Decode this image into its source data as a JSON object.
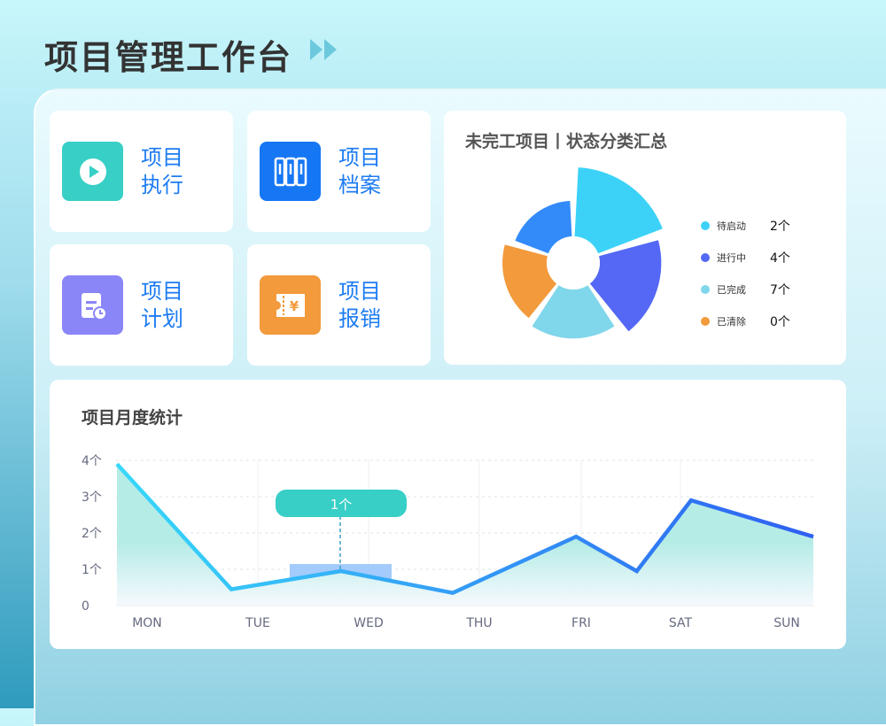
{
  "header": {
    "title": "项目管理工作台"
  },
  "quick_links": [
    {
      "line1": "项目",
      "line2": "执行",
      "icon": "play-icon",
      "color": "#37cfc6"
    },
    {
      "line1": "项目",
      "line2": "档案",
      "icon": "archive-icon",
      "color": "#1677f5"
    },
    {
      "line1": "项目",
      "line2": "计划",
      "icon": "plan-clock-icon",
      "color": "#8b86f7"
    },
    {
      "line1": "项目",
      "line2": "报销",
      "icon": "yuan-ticket-icon",
      "color": "#f29a3c"
    }
  ],
  "status_summary": {
    "title": "未完工项目丨状态分类汇总",
    "legend": [
      {
        "name": "待启动",
        "value": "2个",
        "color": "#3cd2f8"
      },
      {
        "name": "进行中",
        "value": "4个",
        "color": "#5468f5"
      },
      {
        "name": "已完成",
        "value": "7个",
        "color": "#80d6ea"
      },
      {
        "name": "已清除",
        "value": "0个",
        "color": "#f29a3c"
      }
    ],
    "slice_colors": [
      "#3cd2f8",
      "#5468f5",
      "#80d6ea",
      "#f29a3c",
      "#338bfa"
    ],
    "slice_relative_radius": [
      1.0,
      0.92,
      0.79,
      0.74,
      0.65
    ]
  },
  "chart_data": {
    "type": "area",
    "title": "项目月度统计",
    "categories": [
      "MON",
      "TUE",
      "WED",
      "THU",
      "FRI",
      "SAT",
      "SUN"
    ],
    "y_ticks": [
      "0",
      "1个",
      "2个",
      "3个",
      "4个"
    ],
    "ylim": [
      0,
      4
    ],
    "points": [
      [
        -0.27,
        3.9
      ],
      [
        0.76,
        0.45
      ],
      [
        1.75,
        0.95
      ],
      [
        2.76,
        0.35
      ],
      [
        3.95,
        1.9
      ],
      [
        4.56,
        0.95
      ],
      [
        5.1,
        2.9
      ],
      [
        6.25,
        1.9
      ]
    ],
    "tooltip": {
      "category": "WED",
      "label": "1个"
    },
    "grid": true
  }
}
